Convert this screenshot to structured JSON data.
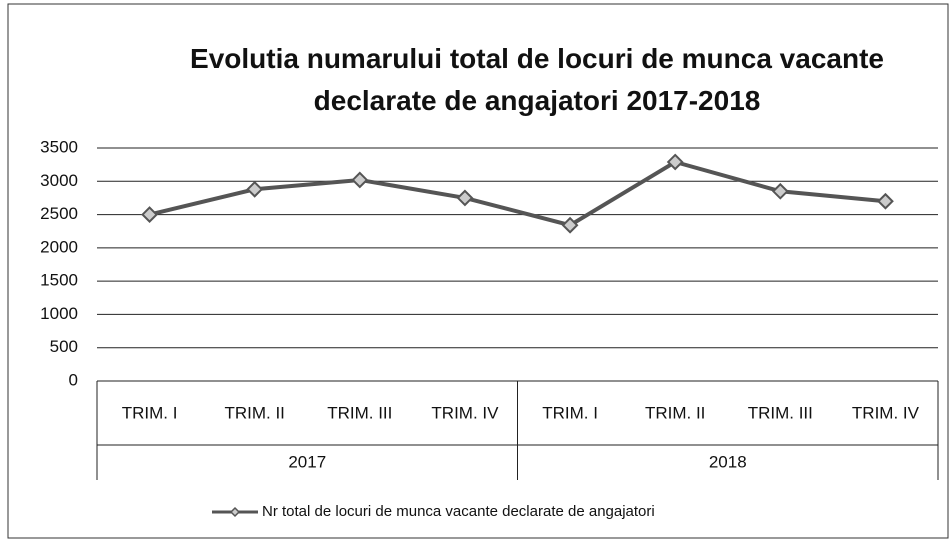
{
  "chart_data": {
    "type": "line",
    "title": "Evolutia numarului total de locuri de munca vacante declarate de angajatori 2017-2018",
    "categories": [
      "TRIM. I",
      "TRIM. II",
      "TRIM. III",
      "TRIM. IV",
      "TRIM. I",
      "TRIM. II",
      "TRIM. III",
      "TRIM. IV"
    ],
    "groups": [
      "2017",
      "2018"
    ],
    "series": [
      {
        "name": "Nr total de locuri de munca vacante declarate de angajatori",
        "color": "#555555",
        "values": [
          2500,
          2880,
          3020,
          2750,
          2340,
          3290,
          2850,
          2700
        ]
      }
    ],
    "ylim": [
      0,
      3500
    ],
    "yticks": [
      0,
      500,
      1000,
      1500,
      2000,
      2500,
      3000,
      3500
    ],
    "grid": true,
    "legend": "bottom"
  }
}
